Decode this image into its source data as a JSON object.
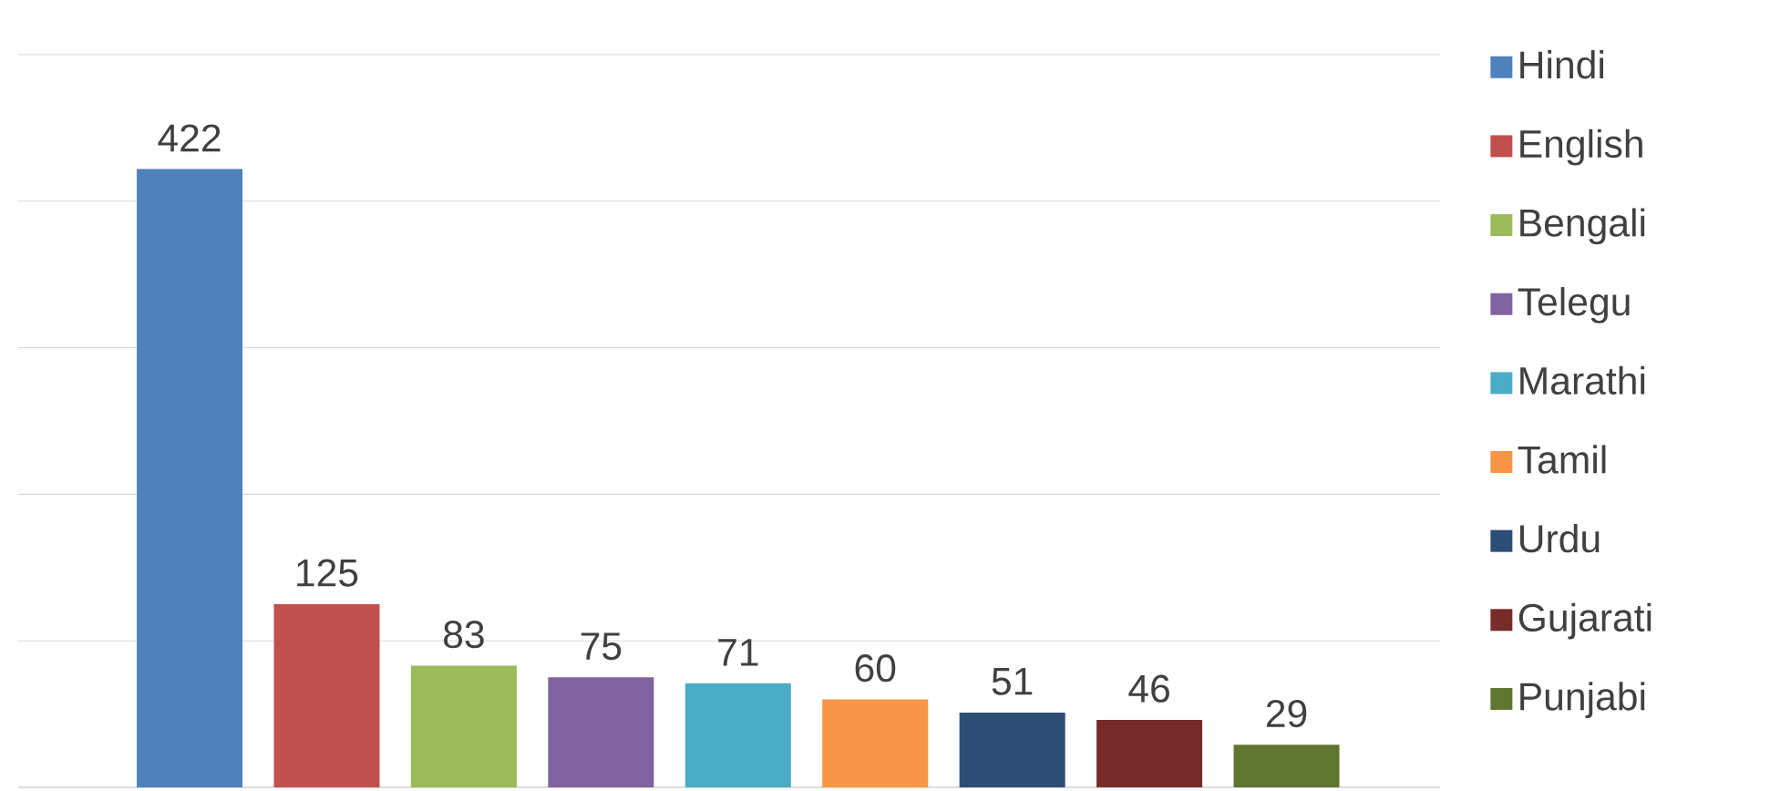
{
  "chart_data": {
    "type": "bar",
    "stacked": true,
    "categories": [
      null,
      null,
      null,
      null,
      null,
      null,
      null,
      null,
      null
    ],
    "series": [
      {
        "name": "Hindi",
        "color": "#4f81bd",
        "values": [
          422,
          null,
          null,
          null,
          null,
          null,
          null,
          null,
          null
        ]
      },
      {
        "name": "English",
        "color": "#c0504d",
        "values": [
          null,
          125,
          null,
          null,
          null,
          null,
          null,
          null,
          null
        ]
      },
      {
        "name": "Bengali",
        "color": "#9bbb59",
        "values": [
          null,
          null,
          83,
          null,
          null,
          null,
          null,
          null,
          null
        ]
      },
      {
        "name": "Telegu",
        "color": "#8064a2",
        "values": [
          null,
          null,
          null,
          75,
          null,
          null,
          null,
          null,
          null
        ]
      },
      {
        "name": "Marathi",
        "color": "#4bacc6",
        "values": [
          null,
          null,
          null,
          null,
          71,
          null,
          null,
          null,
          null
        ]
      },
      {
        "name": "Tamil",
        "color": "#f79646",
        "values": [
          null,
          null,
          null,
          null,
          null,
          60,
          null,
          null,
          null
        ]
      },
      {
        "name": "Urdu",
        "color": "#2c4d75",
        "values": [
          null,
          null,
          null,
          null,
          null,
          null,
          51,
          null,
          null
        ]
      },
      {
        "name": "Gujarati",
        "color": "#772c2a",
        "values": [
          null,
          null,
          null,
          null,
          null,
          null,
          null,
          46,
          null
        ]
      },
      {
        "name": "Punjabi",
        "color": "#5f7530",
        "values": [
          null,
          null,
          null,
          null,
          null,
          null,
          null,
          null,
          29
        ]
      }
    ],
    "ylim": [
      0,
      500
    ],
    "yticks": [
      0,
      100,
      200,
      300,
      400,
      500
    ],
    "tick_labels": false,
    "grid": "y",
    "legend": "right",
    "data_labels": true
  }
}
